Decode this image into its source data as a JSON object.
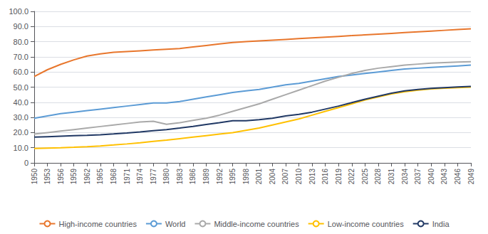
{
  "chart_data": {
    "type": "line",
    "x": [
      1950,
      1953,
      1956,
      1959,
      1962,
      1965,
      1968,
      1971,
      1974,
      1977,
      1980,
      1983,
      1986,
      1989,
      1992,
      1995,
      1998,
      2001,
      2004,
      2007,
      2010,
      2013,
      2016,
      2019,
      2022,
      2025,
      2028,
      2031,
      2034,
      2037,
      2040,
      2043,
      2046,
      2049
    ],
    "series": [
      {
        "name": "High-income countries",
        "color": "#E8762C",
        "values": [
          57.0,
          61.5,
          65.0,
          68.0,
          70.5,
          72.0,
          73.0,
          73.5,
          74.0,
          74.5,
          75.0,
          75.5,
          76.5,
          77.5,
          78.5,
          79.5,
          80.0,
          80.5,
          81.0,
          81.5,
          82.0,
          82.5,
          83.0,
          83.5,
          84.0,
          84.5,
          85.0,
          85.5,
          86.0,
          86.5,
          87.0,
          87.5,
          88.0,
          88.5
        ]
      },
      {
        "name": "World",
        "color": "#5B9BD5",
        "values": [
          29.5,
          31.0,
          32.5,
          33.5,
          34.5,
          35.5,
          36.5,
          37.5,
          38.5,
          39.5,
          39.5,
          40.5,
          42.0,
          43.5,
          45.0,
          46.5,
          47.5,
          48.5,
          50.0,
          51.5,
          52.5,
          54.0,
          55.5,
          57.0,
          58.0,
          59.0,
          60.0,
          61.0,
          62.0,
          62.5,
          63.0,
          63.5,
          64.0,
          64.5
        ]
      },
      {
        "name": "Middle-income countries",
        "color": "#A9A9A9",
        "values": [
          19.0,
          20.0,
          21.0,
          22.0,
          23.0,
          24.0,
          25.0,
          26.0,
          27.0,
          27.5,
          25.5,
          26.5,
          28.0,
          29.5,
          31.5,
          34.0,
          36.5,
          39.0,
          42.0,
          45.0,
          48.0,
          51.0,
          54.0,
          56.5,
          59.0,
          61.0,
          62.5,
          63.5,
          64.5,
          65.2,
          65.8,
          66.2,
          66.5,
          66.8
        ]
      },
      {
        "name": "Low-income countries",
        "color": "#FFC000",
        "values": [
          9.5,
          9.8,
          10.0,
          10.3,
          10.7,
          11.2,
          11.8,
          12.5,
          13.3,
          14.2,
          15.0,
          16.0,
          17.0,
          18.0,
          19.0,
          20.0,
          21.5,
          23.0,
          25.0,
          27.0,
          29.0,
          31.5,
          34.0,
          36.5,
          39.0,
          41.5,
          43.5,
          45.5,
          47.0,
          48.0,
          48.8,
          49.3,
          49.7,
          50.0
        ]
      },
      {
        "name": "India",
        "color": "#203864",
        "values": [
          17.0,
          17.3,
          17.6,
          17.9,
          18.2,
          18.6,
          19.1,
          19.7,
          20.4,
          21.2,
          22.0,
          23.0,
          24.1,
          25.3,
          26.5,
          27.8,
          27.8,
          28.5,
          29.5,
          31.0,
          32.0,
          33.5,
          35.5,
          37.5,
          39.8,
          42.0,
          44.0,
          46.0,
          47.5,
          48.5,
          49.2,
          49.7,
          50.1,
          50.5
        ]
      }
    ],
    "xlim": [
      1950,
      2049
    ],
    "xticks": [
      1950,
      1953,
      1956,
      1959,
      1962,
      1965,
      1968,
      1971,
      1974,
      1977,
      1980,
      1983,
      1986,
      1989,
      1992,
      1995,
      1998,
      2001,
      2004,
      2007,
      2010,
      2013,
      2016,
      2019,
      2022,
      2025,
      2028,
      2031,
      2034,
      2037,
      2040,
      2043,
      2046,
      2049
    ],
    "ylim": [
      0,
      100
    ],
    "yticks": [
      0,
      {
        "value": 10,
        "label": "10.0"
      },
      {
        "value": 20,
        "label": "20.0"
      },
      {
        "value": 30,
        "label": "30.0"
      },
      {
        "value": 40,
        "label": "40.0"
      },
      {
        "value": 50,
        "label": "50.0"
      },
      {
        "value": 60,
        "label": "60.0"
      },
      {
        "value": 70,
        "label": "70.0"
      },
      {
        "value": 80,
        "label": "80.0"
      },
      {
        "value": 90,
        "label": "90.0"
      },
      {
        "value": 100,
        "label": "100.0"
      }
    ],
    "grid": true,
    "legend": "bottom"
  }
}
